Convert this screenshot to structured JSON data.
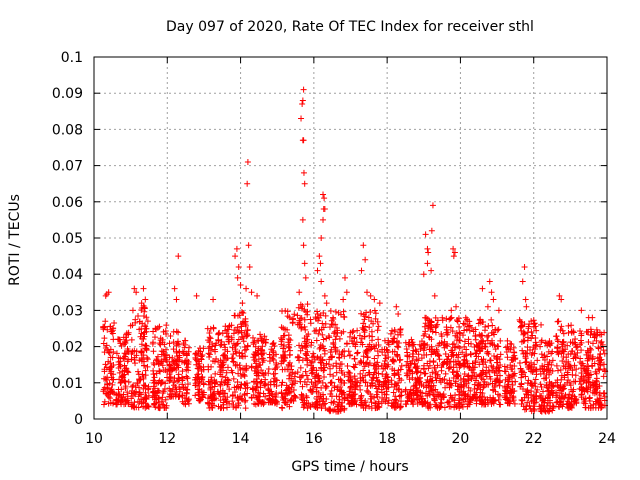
{
  "chart_data": {
    "type": "scatter",
    "title": "Day 097 of 2020, Rate Of TEC Index for receiver sthl",
    "xlabel": "GPS time / hours",
    "ylabel": "ROTI / TECUs",
    "xlim": [
      10,
      24
    ],
    "ylim": [
      0,
      0.1
    ],
    "xticks": [
      10,
      12,
      14,
      16,
      18,
      20,
      22,
      24
    ],
    "yticks": [
      0,
      0.01,
      0.02,
      0.03,
      0.04,
      0.05,
      0.06,
      0.07,
      0.08,
      0.09,
      0.1
    ],
    "ytick_labels": [
      "0",
      "0.01",
      "0.02",
      "0.03",
      "0.04",
      "0.05",
      "0.06",
      "0.07",
      "0.08",
      "0.09",
      "0.1"
    ],
    "grid": true,
    "marker": "+",
    "colors": {
      "points": "#ff0000",
      "grid": "#a0a0a0",
      "axes": "#000000"
    },
    "series": [
      {
        "name": "ROTI",
        "dense_bands": [
          [
            10.25,
            10.55,
            0.004,
            0.028
          ],
          [
            10.6,
            10.95,
            0.004,
            0.024
          ],
          [
            11.0,
            11.5,
            0.003,
            0.032
          ],
          [
            11.6,
            12.0,
            0.003,
            0.026
          ],
          [
            12.05,
            12.35,
            0.006,
            0.025
          ],
          [
            12.4,
            12.6,
            0.004,
            0.022
          ],
          [
            12.75,
            13.0,
            0.005,
            0.02
          ],
          [
            13.1,
            13.7,
            0.003,
            0.026
          ],
          [
            13.75,
            14.2,
            0.003,
            0.03
          ],
          [
            14.3,
            14.7,
            0.004,
            0.024
          ],
          [
            14.75,
            15.0,
            0.004,
            0.022
          ],
          [
            15.1,
            15.5,
            0.003,
            0.03
          ],
          [
            15.55,
            15.85,
            0.003,
            0.032
          ],
          [
            15.9,
            16.35,
            0.003,
            0.03
          ],
          [
            16.4,
            16.85,
            0.002,
            0.03
          ],
          [
            16.9,
            17.2,
            0.004,
            0.025
          ],
          [
            17.25,
            17.8,
            0.003,
            0.03
          ],
          [
            17.85,
            18.05,
            0.004,
            0.022
          ],
          [
            18.1,
            18.4,
            0.003,
            0.025
          ],
          [
            18.5,
            19.0,
            0.004,
            0.022
          ],
          [
            19.0,
            19.6,
            0.003,
            0.028
          ],
          [
            19.6,
            20.2,
            0.003,
            0.028
          ],
          [
            20.2,
            20.9,
            0.004,
            0.028
          ],
          [
            20.9,
            21.1,
            0.004,
            0.025
          ],
          [
            21.2,
            21.5,
            0.004,
            0.022
          ],
          [
            21.6,
            22.1,
            0.002,
            0.028
          ],
          [
            22.15,
            22.55,
            0.002,
            0.022
          ],
          [
            22.6,
            23.2,
            0.003,
            0.027
          ],
          [
            23.25,
            23.95,
            0.003,
            0.025
          ]
        ],
        "points": [
          [
            10.35,
            0.0345
          ],
          [
            10.4,
            0.035
          ],
          [
            10.32,
            0.034
          ],
          [
            11.1,
            0.036
          ],
          [
            11.15,
            0.035
          ],
          [
            11.35,
            0.036
          ],
          [
            11.4,
            0.033
          ],
          [
            11.3,
            0.032
          ],
          [
            12.3,
            0.045
          ],
          [
            12.2,
            0.036
          ],
          [
            12.25,
            0.033
          ],
          [
            12.8,
            0.034
          ],
          [
            13.25,
            0.033
          ],
          [
            13.9,
            0.047
          ],
          [
            13.85,
            0.045
          ],
          [
            13.95,
            0.042
          ],
          [
            13.92,
            0.039
          ],
          [
            14.0,
            0.037
          ],
          [
            14.05,
            0.032
          ],
          [
            14.2,
            0.071
          ],
          [
            14.18,
            0.065
          ],
          [
            14.22,
            0.048
          ],
          [
            14.25,
            0.042
          ],
          [
            14.15,
            0.036
          ],
          [
            14.3,
            0.035
          ],
          [
            14.45,
            0.034
          ],
          [
            15.72,
            0.091
          ],
          [
            15.7,
            0.088
          ],
          [
            15.68,
            0.087
          ],
          [
            15.65,
            0.083
          ],
          [
            15.72,
            0.077
          ],
          [
            15.7,
            0.077
          ],
          [
            15.73,
            0.068
          ],
          [
            15.75,
            0.065
          ],
          [
            15.7,
            0.055
          ],
          [
            15.72,
            0.048
          ],
          [
            15.75,
            0.043
          ],
          [
            15.78,
            0.039
          ],
          [
            15.6,
            0.035
          ],
          [
            16.25,
            0.062
          ],
          [
            16.28,
            0.061
          ],
          [
            16.27,
            0.058
          ],
          [
            16.3,
            0.058
          ],
          [
            16.25,
            0.055
          ],
          [
            16.2,
            0.05
          ],
          [
            16.15,
            0.045
          ],
          [
            16.18,
            0.043
          ],
          [
            16.1,
            0.041
          ],
          [
            16.2,
            0.038
          ],
          [
            16.3,
            0.034
          ],
          [
            16.35,
            0.032
          ],
          [
            16.85,
            0.039
          ],
          [
            16.9,
            0.035
          ],
          [
            16.8,
            0.033
          ],
          [
            17.35,
            0.048
          ],
          [
            17.4,
            0.044
          ],
          [
            17.3,
            0.041
          ],
          [
            17.45,
            0.035
          ],
          [
            17.55,
            0.034
          ],
          [
            17.65,
            0.033
          ],
          [
            17.8,
            0.032
          ],
          [
            18.25,
            0.031
          ],
          [
            18.3,
            0.029
          ],
          [
            19.05,
            0.051
          ],
          [
            19.1,
            0.047
          ],
          [
            19.12,
            0.046
          ],
          [
            19.1,
            0.043
          ],
          [
            19.0,
            0.04
          ],
          [
            19.25,
            0.059
          ],
          [
            19.22,
            0.052
          ],
          [
            19.2,
            0.041
          ],
          [
            19.3,
            0.034
          ],
          [
            19.8,
            0.047
          ],
          [
            19.85,
            0.046
          ],
          [
            19.82,
            0.045
          ],
          [
            19.88,
            0.031
          ],
          [
            19.75,
            0.03
          ],
          [
            20.6,
            0.036
          ],
          [
            20.8,
            0.038
          ],
          [
            20.85,
            0.035
          ],
          [
            20.9,
            0.033
          ],
          [
            20.75,
            0.031
          ],
          [
            21.05,
            0.03
          ],
          [
            21.75,
            0.042
          ],
          [
            21.7,
            0.038
          ],
          [
            21.78,
            0.033
          ],
          [
            21.8,
            0.031
          ],
          [
            22.7,
            0.034
          ],
          [
            22.75,
            0.033
          ],
          [
            22.2,
            0.026
          ],
          [
            23.3,
            0.03
          ],
          [
            23.5,
            0.028
          ],
          [
            23.6,
            0.028
          ]
        ]
      }
    ]
  }
}
